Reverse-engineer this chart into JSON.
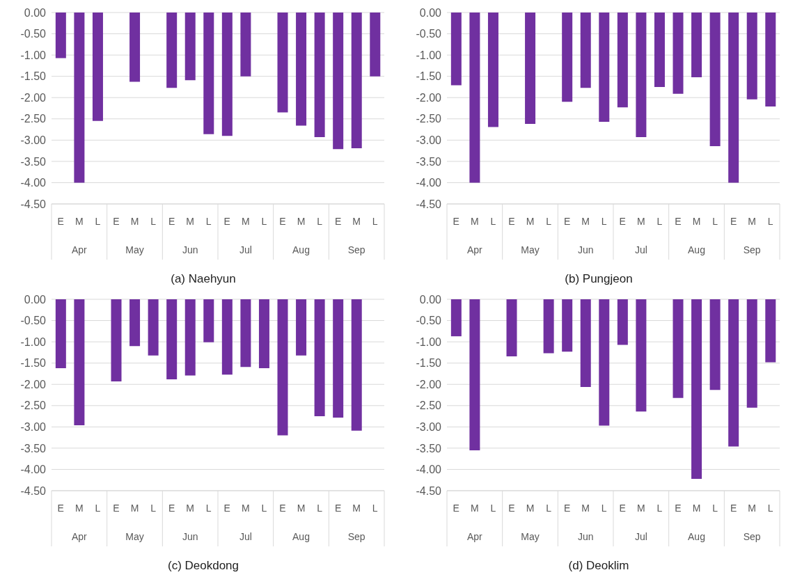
{
  "chart_data": [
    {
      "type": "bar",
      "title": "(a)  Naehyun",
      "categories": [
        "E",
        "M",
        "L",
        "E",
        "M",
        "L",
        "E",
        "M",
        "L",
        "E",
        "M",
        "L",
        "E",
        "M",
        "L",
        "E",
        "M",
        "L"
      ],
      "annotations": [
        "Apr",
        "May",
        "Jun",
        "Jul",
        "Aug",
        "Sep"
      ],
      "color": "#7030a0",
      "values": [
        -1.07,
        -4.0,
        -2.55,
        null,
        -1.63,
        null,
        -1.77,
        -1.59,
        -2.86,
        -2.9,
        -1.5,
        null,
        -2.35,
        -2.66,
        -2.93,
        -3.21,
        -3.19,
        -1.5
      ],
      "ylim": [
        -4.5,
        0
      ],
      "yticks": [
        {
          "value": 0,
          "label": "0.00"
        },
        {
          "value": -0.5,
          "label": "-0.50"
        },
        {
          "value": -1,
          "label": "-1.00"
        },
        {
          "value": -1.5,
          "label": "-1.50"
        },
        {
          "value": -2,
          "label": "-2.00"
        },
        {
          "value": -2.5,
          "label": "-2.50"
        },
        {
          "value": -3,
          "label": "-3.00"
        },
        {
          "value": -3.5,
          "label": "-3.50"
        },
        {
          "value": -4,
          "label": "-4.00"
        },
        {
          "value": -4.5,
          "label": "-4.50"
        }
      ],
      "grid": "y"
    },
    {
      "type": "bar",
      "title": "(b)  Pungjeon",
      "categories": [
        "E",
        "M",
        "L",
        "E",
        "M",
        "L",
        "E",
        "M",
        "L",
        "E",
        "M",
        "L",
        "E",
        "M",
        "L",
        "E",
        "M",
        "L"
      ],
      "annotations": [
        "Apr",
        "May",
        "Jun",
        "Jul",
        "Aug",
        "Sep"
      ],
      "color": "#7030a0",
      "values": [
        -1.71,
        -4.0,
        -2.69,
        null,
        -2.62,
        null,
        -2.1,
        -1.77,
        -2.57,
        -2.23,
        -2.93,
        -1.75,
        -1.91,
        -1.52,
        -3.14,
        -4.0,
        -2.04,
        -2.21
      ],
      "ylim": [
        -4.5,
        0
      ],
      "yticks": [
        {
          "value": 0,
          "label": "0.00"
        },
        {
          "value": -0.5,
          "label": "-0.50"
        },
        {
          "value": -1,
          "label": "-1.00"
        },
        {
          "value": -1.5,
          "label": "-1.50"
        },
        {
          "value": -2,
          "label": "-2.00"
        },
        {
          "value": -2.5,
          "label": "-2.50"
        },
        {
          "value": -3,
          "label": "-3.00"
        },
        {
          "value": -3.5,
          "label": "-3.50"
        },
        {
          "value": -4,
          "label": "-4.00"
        },
        {
          "value": -4.5,
          "label": "-4.50"
        }
      ],
      "grid": "y"
    },
    {
      "type": "bar",
      "title": "(c)  Deokdong",
      "categories": [
        "E",
        "M",
        "L",
        "E",
        "M",
        "L",
        "E",
        "M",
        "L",
        "E",
        "M",
        "L",
        "E",
        "M",
        "L",
        "E",
        "M",
        "L"
      ],
      "annotations": [
        "Apr",
        "May",
        "Jun",
        "Jul",
        "Aug",
        "Sep"
      ],
      "color": "#7030a0",
      "values": [
        -1.62,
        -2.96,
        null,
        -1.93,
        -1.1,
        -1.32,
        -1.88,
        -1.79,
        -1.01,
        -1.77,
        -1.59,
        -1.62,
        -3.2,
        -1.32,
        -2.75,
        -2.78,
        -3.09,
        null
      ],
      "ylim": [
        -4.5,
        0
      ],
      "yticks": [
        {
          "value": 0,
          "label": "0.00"
        },
        {
          "value": -0.5,
          "label": "-0.50"
        },
        {
          "value": -1,
          "label": "-1.00"
        },
        {
          "value": -1.5,
          "label": "-1.50"
        },
        {
          "value": -2,
          "label": "-2.00"
        },
        {
          "value": -2.5,
          "label": "-2.50"
        },
        {
          "value": -3,
          "label": "-3.00"
        },
        {
          "value": -3.5,
          "label": "-3.50"
        },
        {
          "value": -4,
          "label": "-4.00"
        },
        {
          "value": -4.5,
          "label": "-4.50"
        }
      ],
      "grid": "y"
    },
    {
      "type": "bar",
      "title": "(d)  Deoklim",
      "categories": [
        "E",
        "M",
        "L",
        "E",
        "M",
        "L",
        "E",
        "M",
        "L",
        "E",
        "M",
        "L",
        "E",
        "M",
        "L",
        "E",
        "M",
        "L"
      ],
      "annotations": [
        "Apr",
        "May",
        "Jun",
        "Jul",
        "Aug",
        "Sep"
      ],
      "color": "#7030a0",
      "values": [
        -0.87,
        -3.55,
        null,
        -1.34,
        null,
        -1.27,
        -1.23,
        -2.06,
        -2.97,
        -1.07,
        -2.64,
        null,
        -2.32,
        -4.22,
        -2.13,
        -3.46,
        -2.55,
        -1.48
      ],
      "ylim": [
        -4.5,
        0
      ],
      "yticks": [
        {
          "value": 0,
          "label": "0.00"
        },
        {
          "value": -0.5,
          "label": "-0.50"
        },
        {
          "value": -1,
          "label": "-1.00"
        },
        {
          "value": -1.5,
          "label": "-1.50"
        },
        {
          "value": -2,
          "label": "-2.00"
        },
        {
          "value": -2.5,
          "label": "-2.50"
        },
        {
          "value": -3,
          "label": "-3.00"
        },
        {
          "value": -3.5,
          "label": "-3.50"
        },
        {
          "value": -4,
          "label": "-4.00"
        },
        {
          "value": -4.5,
          "label": "-4.50"
        }
      ],
      "grid": "y"
    }
  ]
}
